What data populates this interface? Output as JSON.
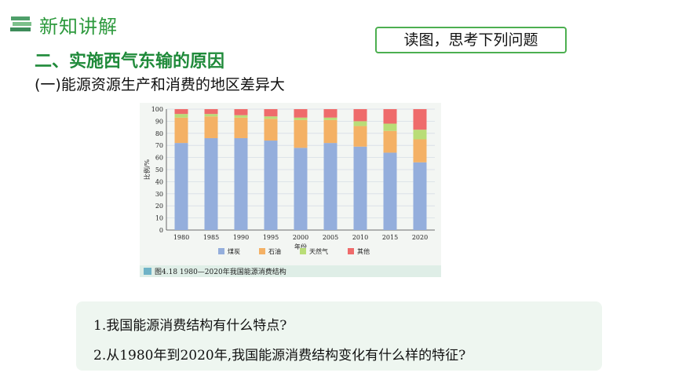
{
  "header": {
    "title": "新知讲解",
    "icon": "books-icon"
  },
  "callout": {
    "text": "读图，思考下列问题"
  },
  "section": {
    "title": "二、实施西气东输的原因",
    "subtitle": "(一)能源资源生产和消费的地区差异大"
  },
  "figure": {
    "caption": "图4.18   1980—2020年我国能源消费结构"
  },
  "questions": [
    "1.我国能源消费结构有什么特点?",
    "2.从1980年到2020年,我国能源消费结构变化有什么样的特征?"
  ],
  "chart_data": {
    "type": "bar",
    "stacked": true,
    "categories": [
      "1980",
      "1985",
      "1990",
      "1995",
      "2000",
      "2005",
      "2010",
      "2015",
      "2020"
    ],
    "series": [
      {
        "name": "煤炭",
        "color": "#94aedc",
        "values": [
          72,
          76,
          76,
          74,
          68,
          72,
          69,
          64,
          56
        ]
      },
      {
        "name": "石油",
        "color": "#f4b165",
        "values": [
          21,
          18,
          17,
          18,
          23,
          19,
          17,
          18,
          19
        ]
      },
      {
        "name": "天然气",
        "color": "#b9dd77",
        "values": [
          3,
          2,
          2,
          2,
          2,
          2,
          4,
          6,
          8
        ]
      },
      {
        "name": "其他",
        "color": "#ef6b6b",
        "values": [
          4,
          4,
          5,
          6,
          7,
          7,
          10,
          12,
          17
        ]
      }
    ],
    "xlabel": "年份",
    "ylabel": "比例/%",
    "ylim": [
      0,
      100
    ],
    "yticks": [
      0,
      10,
      20,
      30,
      40,
      50,
      60,
      70,
      80,
      90,
      100
    ],
    "grid": true,
    "legend": "bottom"
  }
}
